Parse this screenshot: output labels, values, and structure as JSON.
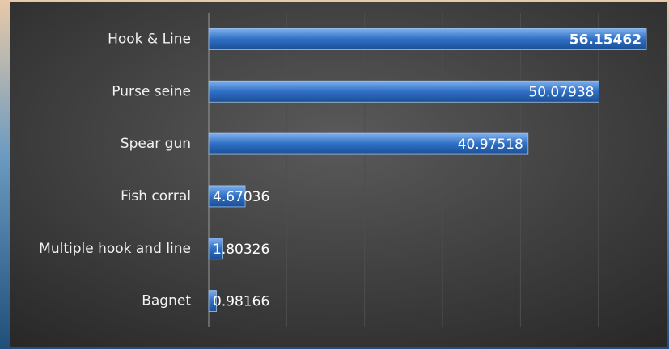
{
  "chart_data": {
    "type": "bar",
    "orientation": "horizontal",
    "categories": [
      "Hook & Line",
      "Purse seine",
      "Spear gun",
      "Fish corral",
      "Multiple hook and line",
      "Bagnet"
    ],
    "values": [
      56.15462,
      50.07938,
      40.97518,
      4.67036,
      1.80326,
      0.98166
    ],
    "color": "#2f6fc4",
    "xlim": [
      0,
      57.5
    ],
    "xticks": [
      0,
      10,
      20,
      30,
      40,
      50
    ],
    "grid": true
  }
}
